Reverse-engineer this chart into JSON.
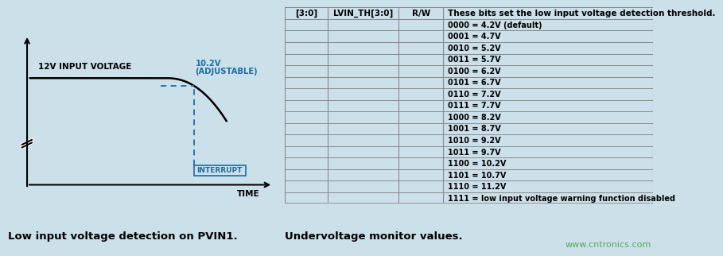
{
  "bg_color": "#cce0ea",
  "left_caption": "Low input voltage detection on PVIN1.",
  "right_caption": "Undervoltage monitor values.",
  "watermark": "www.cntronics.com",
  "table_col1": "[3:0]",
  "table_col2": "LVIN_TH[3:0]",
  "table_col3": "R/W",
  "table_col4_header": "These bits set the low input voltage detection threshold.",
  "table_col4_rows": [
    "0000 = 4.2V (default)",
    "0001 = 4.7V",
    "0010 = 5.2V",
    "0011 = 5.7V",
    "0100 = 6.2V",
    "0101 = 6.7V",
    "0110 = 7.2V",
    "0111 = 7.7V",
    "1000 = 8.2V",
    "1001 = 8.7V",
    "1010 = 9.2V",
    "1011 = 9.7V",
    "1100 = 10.2V",
    "1101 = 10.7V",
    "1110 = 11.2V",
    "1111 = low input voltage warning function disabled"
  ],
  "signal_color": "#000000",
  "blue_color": "#1a6fa0",
  "interrupt_label": "INTERRUPT",
  "voltage_label": "10.2V\n(ADJUSTABLE)",
  "input_label": "12V INPUT VOLTAGE",
  "time_label": "TIME",
  "table_line_color": "#888888",
  "watermark_color": "#55aa55"
}
